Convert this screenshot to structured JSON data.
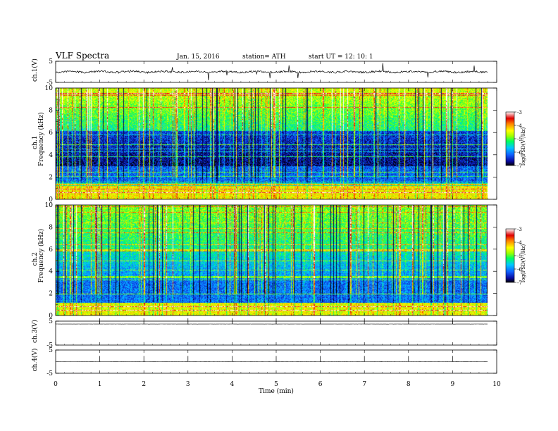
{
  "header": {
    "title": "VLF  Spectra",
    "date": "Jan.  15,  2016",
    "station": "station= ATH",
    "start": "start  UT  =    12: 10: 1"
  },
  "chart_data": [
    {
      "type": "line",
      "ylabel": "ch.1(V)",
      "ylim": [
        -5,
        5
      ],
      "yticks": [
        "5",
        "-5"
      ],
      "mean": 0
    },
    {
      "type": "heatmap",
      "ylabel": "Frequency  (kHz)",
      "channel": "ch.1",
      "ylim": [
        0,
        10
      ],
      "yticks": [
        "0",
        "2",
        "4",
        "6",
        "8",
        "10"
      ],
      "colorbar": {
        "label": "log(PSD(V²/Hz)",
        "range": [
          -7,
          -3
        ],
        "ticks": [
          "-3",
          "-4",
          "-5",
          "-6",
          "-7"
        ]
      }
    },
    {
      "type": "heatmap",
      "ylabel": "Frequency  (kHz)",
      "channel": "ch.2",
      "ylim": [
        0,
        10
      ],
      "yticks": [
        "0",
        "2",
        "4",
        "6",
        "8",
        "10"
      ],
      "colorbar": {
        "label": "log(PSD(V²/Hz)",
        "range": [
          -7,
          -3
        ],
        "ticks": [
          "-3",
          "-4",
          "-5",
          "-6",
          "-7"
        ]
      }
    },
    {
      "type": "line",
      "ylabel": "ch.3(V)",
      "ylim": [
        -5,
        5
      ],
      "yticks": [
        "5",
        "-5"
      ],
      "mean": 3.8
    },
    {
      "type": "line",
      "ylabel": "ch.4(V)",
      "ylim": [
        -5,
        5
      ],
      "yticks": [
        "5",
        "-5"
      ],
      "mean": 0
    }
  ],
  "xaxis": {
    "label": "Time  (min)",
    "xlim": [
      0,
      10
    ],
    "ticks": [
      "0",
      "1",
      "2",
      "3",
      "4",
      "5",
      "6",
      "7",
      "8",
      "9",
      "10"
    ],
    "data_end": 9.8
  }
}
